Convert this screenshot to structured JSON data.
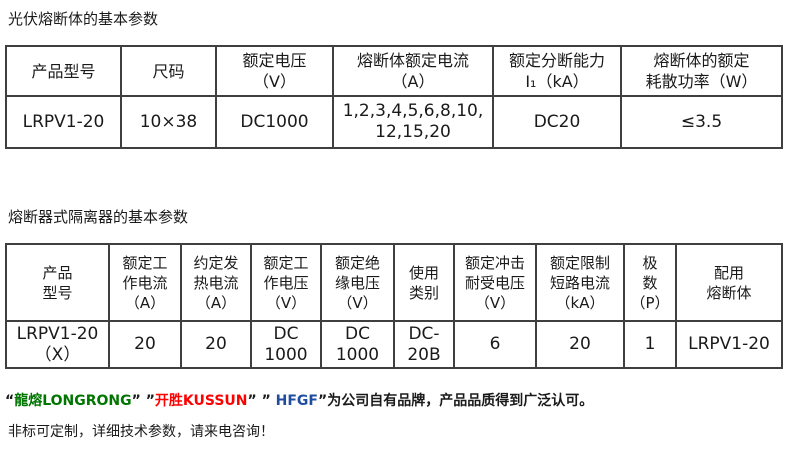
{
  "colors": {
    "border": "#3f3f3f",
    "text": "#1a1a1a",
    "brand_green": "#007500",
    "brand_red": "#ff0000",
    "brand_blue": "#1f4ea1"
  },
  "section1": {
    "title": "光伏熔断体的基本参数",
    "headers": {
      "h1": "产品型号",
      "h2": "尺码",
      "h3_l1": "额定电压",
      "h3_l2": "（V）",
      "h4_l1": "熔断体额定电流",
      "h4_l2": "（A）",
      "h5_l1": "额定分断能力",
      "h5_l2": "I₁（kA）",
      "h6_l1": "熔断体的额定",
      "h6_l2": "耗散功率（W）"
    },
    "row": {
      "c1": "LRPV1-20",
      "c2": "10×38",
      "c3": "DC1000",
      "c4_l1": "1,2,3,4,5,6,8,10,",
      "c4_l2": "12,15,20",
      "c5": "DC20",
      "c6": "≤3.5"
    }
  },
  "section2": {
    "title": "熔断器式隔离器的基本参数",
    "headers": {
      "h1_l1": "产品",
      "h1_l2": "型号",
      "h2_l1": "额定工",
      "h2_l2": "作电流",
      "h2_l3": "（A）",
      "h3_l1": "约定发",
      "h3_l2": "热电流",
      "h3_l3": "（A）",
      "h4_l1": "额定工",
      "h4_l2": "作电压",
      "h4_l3": "（V）",
      "h5_l1": "额定绝",
      "h5_l2": "缘电压",
      "h5_l3": "（V）",
      "h6_l1": "使用",
      "h6_l2": "类别",
      "h7_l1": "额定冲击",
      "h7_l2": "耐受电压",
      "h7_l3": "（V）",
      "h8_l1": "额定限制",
      "h8_l2": "短路电流",
      "h8_l3": "（kA）",
      "h9_l1": "极",
      "h9_l2": "数",
      "h9_l3": "（P）",
      "h10_l1": "配用",
      "h10_l2": "熔断体"
    },
    "row": {
      "c1_l1": "LRPV1-20",
      "c1_l2": "（X）",
      "c2": "20",
      "c3": "20",
      "c4_l1": "DC",
      "c4_l2": "1000",
      "c5_l1": "DC",
      "c5_l2": "1000",
      "c6_l1": "DC-",
      "c6_l2": "20B",
      "c7": "6",
      "c8": "20",
      "c9": "1",
      "c10": "LRPV1-20"
    }
  },
  "footer": {
    "brand_segments": [
      {
        "text": "“",
        "color": "#1a1a1a"
      },
      {
        "text": "龍熔LONGRONG",
        "color": "#007500"
      },
      {
        "text": "” ”",
        "color": "#1a1a1a"
      },
      {
        "text": "开胜KUSSUN",
        "color": "#ff0000"
      },
      {
        "text": "” ” ",
        "color": "#1a1a1a"
      },
      {
        "text": "HFGF",
        "color": "#1f4ea1"
      },
      {
        "text": "”",
        "color": "#1a1a1a"
      },
      {
        "text": "为公司自有品牌，产品品质得到广泛认可。",
        "color": "#1a1a1a"
      }
    ],
    "note": "非标可定制，详细技术参数，请来电咨询！"
  }
}
